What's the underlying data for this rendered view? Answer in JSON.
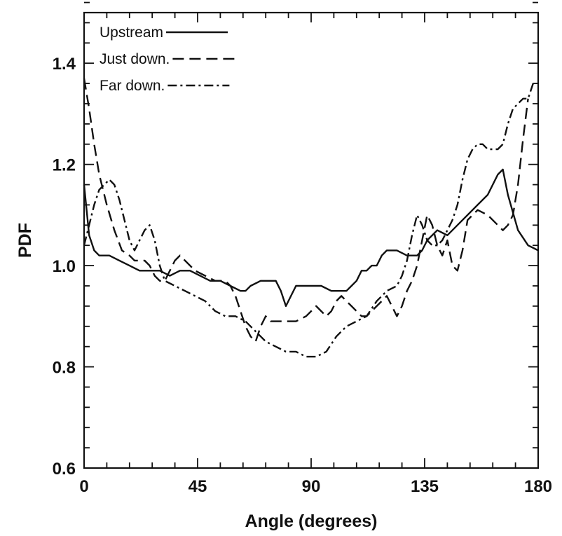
{
  "chart_data": {
    "type": "line",
    "title": "",
    "xlabel": "Angle (degrees)",
    "ylabel": "PDF",
    "xlim": [
      0,
      180
    ],
    "ylim": [
      0.6,
      1.5
    ],
    "xticks": [
      0,
      45,
      90,
      135,
      180
    ],
    "yticks": [
      0.6,
      0.8,
      1.0,
      1.2,
      1.4
    ],
    "xtick_labels": [
      "0",
      "45",
      "90",
      "135",
      "180"
    ],
    "ytick_labels": [
      "0.6",
      "0.8",
      "1.0",
      "1.2",
      "1.4"
    ],
    "grid": false,
    "legend_position": "top-left",
    "series": [
      {
        "name": "Upstream",
        "dash": "solid",
        "x": [
          0,
          2,
          4,
          6,
          10,
          14,
          18,
          22,
          26,
          30,
          34,
          38,
          42,
          46,
          50,
          54,
          58,
          62,
          64,
          66,
          70,
          74,
          76,
          78,
          80,
          82,
          84,
          86,
          90,
          94,
          98,
          102,
          104,
          106,
          108,
          110,
          112,
          114,
          116,
          118,
          120,
          124,
          128,
          132,
          134,
          136,
          140,
          144,
          148,
          152,
          156,
          160,
          164,
          166,
          168,
          172,
          176,
          180
        ],
        "y": [
          1.16,
          1.06,
          1.03,
          1.02,
          1.02,
          1.01,
          1.0,
          0.99,
          0.99,
          0.99,
          0.98,
          0.99,
          0.99,
          0.98,
          0.97,
          0.97,
          0.96,
          0.95,
          0.95,
          0.96,
          0.97,
          0.97,
          0.97,
          0.95,
          0.92,
          0.94,
          0.96,
          0.96,
          0.96,
          0.96,
          0.95,
          0.95,
          0.95,
          0.96,
          0.97,
          0.99,
          0.99,
          1.0,
          1.0,
          1.02,
          1.03,
          1.03,
          1.02,
          1.02,
          1.03,
          1.05,
          1.07,
          1.06,
          1.08,
          1.1,
          1.12,
          1.14,
          1.18,
          1.19,
          1.14,
          1.07,
          1.04,
          1.03
        ]
      },
      {
        "name": "Just down.",
        "dash": "dashed",
        "x": [
          0,
          2,
          4,
          6,
          9,
          12,
          15,
          18,
          20,
          22,
          24,
          26,
          28,
          30,
          32,
          34,
          36,
          38,
          40,
          44,
          48,
          52,
          56,
          58,
          60,
          62,
          64,
          66,
          68,
          70,
          72,
          74,
          76,
          80,
          84,
          88,
          90,
          92,
          94,
          96,
          98,
          100,
          102,
          104,
          106,
          108,
          110,
          112,
          114,
          116,
          118,
          120,
          122,
          124,
          126,
          128,
          130,
          132,
          134,
          136,
          138,
          140,
          142,
          144,
          146,
          148,
          150,
          152,
          156,
          160,
          164,
          166,
          168,
          170,
          172,
          174,
          176
        ],
        "y": [
          1.37,
          1.31,
          1.24,
          1.18,
          1.12,
          1.07,
          1.03,
          1.02,
          1.01,
          1.01,
          1.01,
          1.0,
          0.98,
          0.97,
          0.97,
          0.99,
          1.01,
          1.02,
          1.01,
          0.99,
          0.98,
          0.97,
          0.97,
          0.96,
          0.94,
          0.91,
          0.88,
          0.86,
          0.85,
          0.88,
          0.9,
          0.89,
          0.89,
          0.89,
          0.89,
          0.9,
          0.91,
          0.92,
          0.91,
          0.9,
          0.91,
          0.93,
          0.94,
          0.93,
          0.92,
          0.91,
          0.9,
          0.9,
          0.91,
          0.92,
          0.93,
          0.94,
          0.92,
          0.9,
          0.92,
          0.95,
          0.97,
          1.0,
          1.05,
          1.1,
          1.08,
          1.04,
          1.02,
          1.05,
          1.0,
          0.99,
          1.03,
          1.09,
          1.11,
          1.1,
          1.08,
          1.07,
          1.08,
          1.1,
          1.16,
          1.25,
          1.33
        ]
      },
      {
        "name": "Far down.",
        "dash": "dash-dot",
        "x": [
          0,
          2,
          4,
          6,
          8,
          10,
          12,
          14,
          16,
          18,
          20,
          22,
          24,
          26,
          28,
          30,
          32,
          36,
          40,
          44,
          48,
          52,
          56,
          60,
          64,
          66,
          68,
          70,
          72,
          76,
          80,
          84,
          88,
          92,
          96,
          100,
          104,
          108,
          112,
          116,
          120,
          124,
          126,
          128,
          130,
          132,
          134,
          136,
          138,
          140,
          142,
          144,
          146,
          148,
          150,
          152,
          154,
          156,
          158,
          160,
          162,
          164,
          166,
          168,
          170,
          172,
          174,
          176,
          178
        ],
        "y": [
          1.04,
          1.08,
          1.12,
          1.15,
          1.16,
          1.17,
          1.16,
          1.13,
          1.09,
          1.05,
          1.03,
          1.05,
          1.07,
          1.08,
          1.05,
          1.0,
          0.97,
          0.96,
          0.95,
          0.94,
          0.93,
          0.91,
          0.9,
          0.9,
          0.89,
          0.88,
          0.87,
          0.86,
          0.85,
          0.84,
          0.83,
          0.83,
          0.82,
          0.82,
          0.83,
          0.86,
          0.88,
          0.89,
          0.9,
          0.93,
          0.95,
          0.96,
          0.98,
          1.01,
          1.06,
          1.1,
          1.08,
          1.05,
          1.04,
          1.04,
          1.05,
          1.07,
          1.09,
          1.12,
          1.17,
          1.21,
          1.23,
          1.24,
          1.24,
          1.23,
          1.23,
          1.23,
          1.24,
          1.28,
          1.31,
          1.32,
          1.33,
          1.33,
          1.36
        ]
      }
    ]
  }
}
